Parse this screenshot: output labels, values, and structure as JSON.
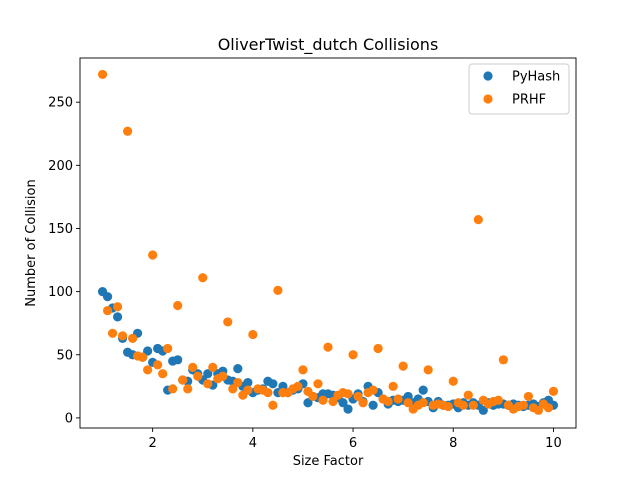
{
  "chart_data": {
    "type": "scatter",
    "title": "OliverTwist_dutch Collisions",
    "xlabel": "Size Factor",
    "ylabel": "Number of Collision",
    "xlim": [
      0.55,
      10.45
    ],
    "ylim": [
      -8,
      285
    ],
    "xticks": [
      2,
      4,
      6,
      8,
      10
    ],
    "yticks": [
      0,
      50,
      100,
      150,
      200,
      250
    ],
    "grid": false,
    "legend_position": "top-right",
    "series": [
      {
        "name": "PyHash",
        "color": "#1f77b4",
        "x": [
          1.0,
          1.1,
          1.2,
          1.3,
          1.4,
          1.5,
          1.6,
          1.7,
          1.8,
          1.9,
          2.0,
          2.1,
          2.2,
          2.3,
          2.4,
          2.5,
          2.6,
          2.7,
          2.8,
          2.9,
          3.0,
          3.1,
          3.2,
          3.3,
          3.4,
          3.5,
          3.6,
          3.7,
          3.8,
          3.9,
          4.0,
          4.1,
          4.2,
          4.3,
          4.4,
          4.5,
          4.6,
          4.7,
          4.8,
          4.9,
          5.0,
          5.1,
          5.2,
          5.3,
          5.4,
          5.5,
          5.6,
          5.7,
          5.8,
          5.9,
          6.0,
          6.1,
          6.2,
          6.3,
          6.4,
          6.5,
          6.6,
          6.7,
          6.8,
          6.9,
          7.0,
          7.1,
          7.2,
          7.3,
          7.4,
          7.5,
          7.6,
          7.7,
          7.8,
          7.9,
          8.0,
          8.1,
          8.2,
          8.3,
          8.4,
          8.5,
          8.6,
          8.7,
          8.8,
          8.9,
          9.0,
          9.1,
          9.2,
          9.3,
          9.4,
          9.5,
          9.6,
          9.7,
          9.8,
          9.9,
          10.0
        ],
        "y": [
          100,
          96,
          87,
          80,
          63,
          52,
          50,
          67,
          48,
          53,
          44,
          55,
          53,
          22,
          45,
          46,
          30,
          29,
          38,
          35,
          30,
          35,
          26,
          35,
          37,
          30,
          29,
          39,
          25,
          28,
          20,
          22,
          23,
          29,
          27,
          20,
          25,
          20,
          22,
          23,
          27,
          12,
          17,
          16,
          19,
          19,
          18,
          16,
          12,
          7,
          15,
          19,
          13,
          25,
          10,
          20,
          15,
          11,
          14,
          13,
          14,
          17,
          12,
          15,
          22,
          13,
          8,
          13,
          10,
          10,
          11,
          8,
          12,
          10,
          12,
          10,
          6,
          12,
          10,
          11,
          11,
          10,
          11,
          10,
          9,
          10,
          11,
          9,
          12,
          14,
          10
        ]
      },
      {
        "name": "PRHF",
        "color": "#ff7f0e",
        "x": [
          1.0,
          1.1,
          1.2,
          1.3,
          1.4,
          1.5,
          1.6,
          1.7,
          1.8,
          1.9,
          2.0,
          2.1,
          2.2,
          2.3,
          2.4,
          2.5,
          2.6,
          2.7,
          2.8,
          2.9,
          3.0,
          3.1,
          3.2,
          3.3,
          3.4,
          3.5,
          3.6,
          3.7,
          3.8,
          3.9,
          4.0,
          4.1,
          4.2,
          4.3,
          4.4,
          4.5,
          4.6,
          4.7,
          4.8,
          4.9,
          5.0,
          5.1,
          5.2,
          5.3,
          5.4,
          5.5,
          5.6,
          5.7,
          5.8,
          5.9,
          6.0,
          6.1,
          6.2,
          6.3,
          6.4,
          6.5,
          6.6,
          6.7,
          6.8,
          6.9,
          7.0,
          7.1,
          7.2,
          7.3,
          7.4,
          7.5,
          7.6,
          7.7,
          7.8,
          7.9,
          8.0,
          8.1,
          8.2,
          8.3,
          8.4,
          8.5,
          8.6,
          8.7,
          8.8,
          8.9,
          9.0,
          9.1,
          9.2,
          9.3,
          9.4,
          9.5,
          9.6,
          9.7,
          9.8,
          9.9,
          10.0
        ],
        "y": [
          272,
          85,
          67,
          88,
          65,
          227,
          63,
          49,
          48,
          38,
          129,
          42,
          35,
          55,
          23,
          89,
          30,
          23,
          40,
          33,
          111,
          27,
          40,
          31,
          33,
          76,
          23,
          28,
          18,
          22,
          66,
          23,
          22,
          20,
          10,
          101,
          20,
          20,
          23,
          25,
          38,
          21,
          17,
          27,
          14,
          56,
          13,
          18,
          20,
          19,
          50,
          17,
          12,
          20,
          22,
          55,
          15,
          13,
          25,
          15,
          41,
          12,
          7,
          10,
          12,
          38,
          10,
          11,
          10,
          9,
          29,
          12,
          10,
          18,
          10,
          157,
          14,
          11,
          13,
          14,
          46,
          10,
          7,
          9,
          10,
          17,
          8,
          6,
          11,
          8,
          21
        ]
      }
    ]
  }
}
